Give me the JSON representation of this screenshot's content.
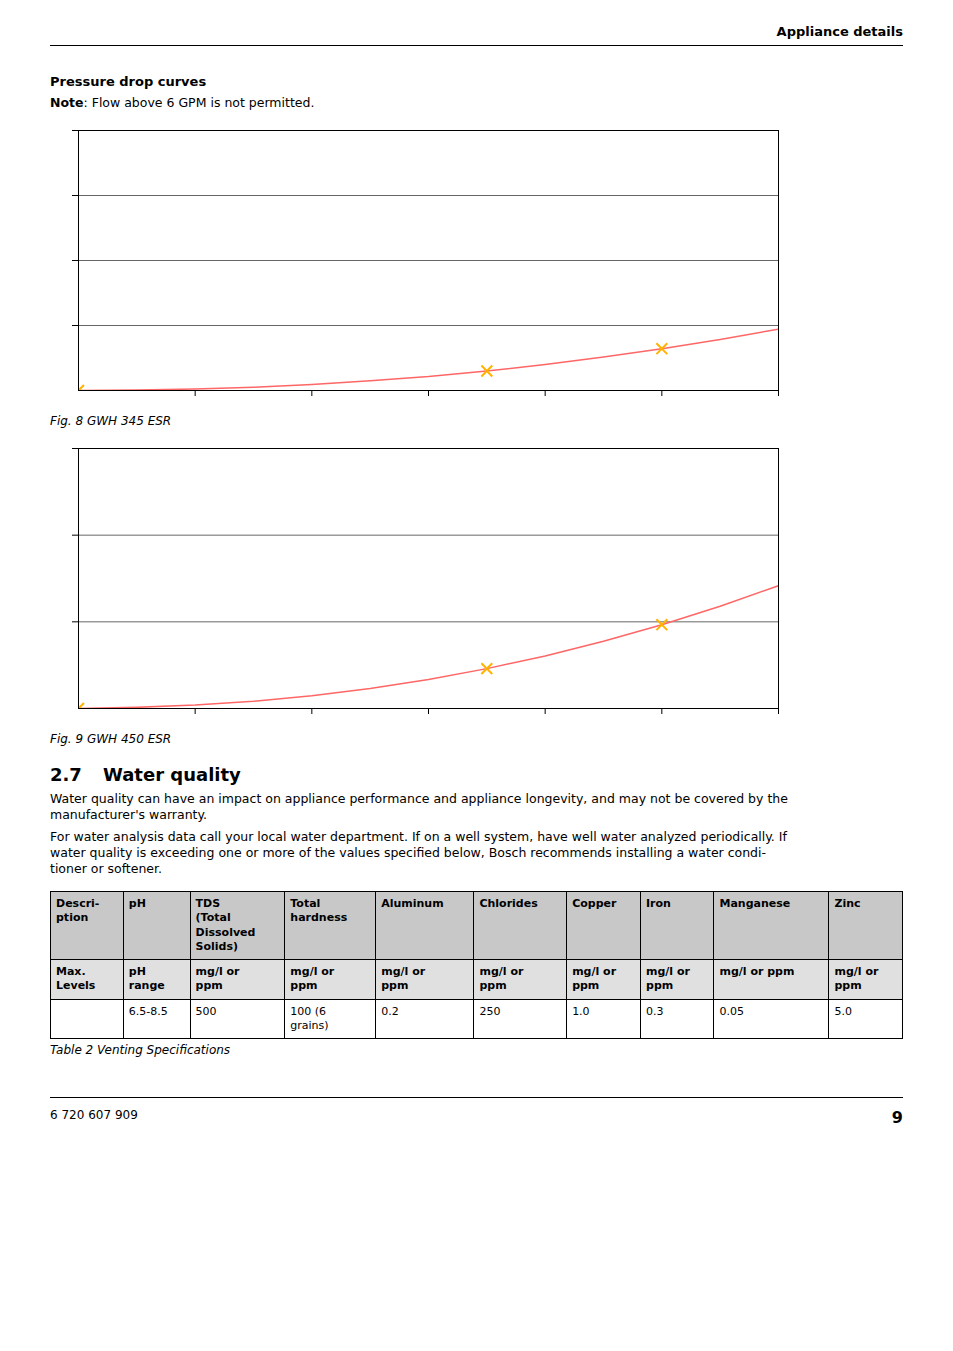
{
  "chart_data": [
    {
      "type": "line",
      "title": "Fig. 8   GWH 345 ESR",
      "xlim": [
        0,
        6.0
      ],
      "xticks": [
        1,
        2,
        3,
        4,
        5,
        6
      ],
      "ylim": [
        0,
        1.4
      ],
      "yticks": [
        0.35,
        0.7,
        1.05,
        1.4
      ],
      "grid": true,
      "tick_labels": false,
      "series": [
        {
          "type": "line",
          "color": "#FF6666",
          "x": [
            0.0,
            0.5,
            1.0,
            1.5,
            2.0,
            2.5,
            3.0,
            3.5,
            4.0,
            4.5,
            5.0,
            5.5,
            6.0
          ],
          "values": [
            0.0,
            0.003,
            0.008,
            0.018,
            0.032,
            0.052,
            0.075,
            0.105,
            0.14,
            0.18,
            0.225,
            0.275,
            0.33
          ]
        },
        {
          "type": "scatter",
          "color": "#FFB300",
          "marker": "x",
          "x": [
            0.0,
            3.5,
            5.0
          ],
          "values": [
            0.0,
            0.105,
            0.225
          ]
        }
      ]
    },
    {
      "type": "line",
      "title": "Fig. 9   GWH 450 ESR",
      "xlim": [
        0,
        6.0
      ],
      "xticks": [
        1,
        2,
        3,
        4,
        5,
        6
      ],
      "ylim": [
        0,
        0.9
      ],
      "yticks": [
        0.3,
        0.6,
        0.9
      ],
      "grid": true,
      "tick_labels": false,
      "series": [
        {
          "type": "line",
          "color": "#FF6666",
          "x": [
            0.0,
            0.5,
            1.0,
            1.5,
            2.0,
            2.5,
            3.0,
            3.5,
            4.0,
            4.5,
            5.0,
            5.5,
            6.0
          ],
          "values": [
            0.0,
            0.004,
            0.012,
            0.025,
            0.044,
            0.069,
            0.1,
            0.138,
            0.182,
            0.233,
            0.29,
            0.354,
            0.425
          ]
        },
        {
          "type": "scatter",
          "color": "#FFB300",
          "marker": "x",
          "x": [
            0.0,
            3.5,
            5.0
          ],
          "values": [
            0.0,
            0.138,
            0.29
          ]
        }
      ]
    }
  ],
  "page": {
    "header": "Appliance details",
    "section_title": "Pressure drop curves",
    "note": [
      "Note",
      ": Flow above 6 GPM is not permitted."
    ],
    "heading": [
      "2.7",
      "Water quality"
    ],
    "paragraphs": [
      [
        "Water quality can have an impact on appliance performance and appliance longevity, and may not be covered by the",
        "manufacturer's warranty."
      ],
      [
        "For water analysis data call your local water department. If on a well system, have well water analyzed periodically. If",
        "water quality is exceeding one or more of the values specified below, Bosch recommends installing a water condi-",
        "tioner or softener."
      ]
    ],
    "table": {
      "rows": [
        [
          "Descri-\nption",
          "pH",
          "TDS\n(Total\nDissolved\nSolids)",
          "Total\nhardness",
          "Aluminum",
          "Chlorides",
          "Copper",
          "Iron",
          "Manganese",
          "Zinc"
        ],
        [
          "Max.\nLevels",
          "pH\nrange",
          "mg/l or\nppm",
          "mg/l or\nppm",
          "mg/l or\nppm",
          "mg/l or\nppm",
          "mg/l or\nppm",
          "mg/l or\nppm",
          "mg/l or ppm",
          "mg/l or\nppm"
        ],
        [
          "",
          "6.5-8.5",
          "500",
          "100 (6\ngrains)",
          "0.2",
          "250",
          "1.0",
          "0.3",
          "0.05",
          "5.0"
        ]
      ],
      "caption": "Table 2  Venting Specifications"
    },
    "footer": [
      "6 720 607 909",
      "9"
    ]
  }
}
